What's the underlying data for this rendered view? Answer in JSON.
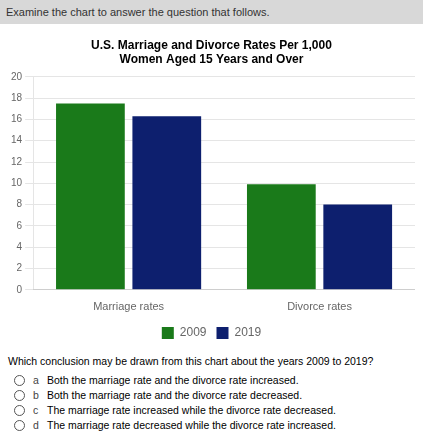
{
  "chart_data": {
    "type": "bar",
    "title": [
      "U.S. Marriage and Divorce Rates Per 1,000",
      "Women Aged 15 Years and Over"
    ],
    "categories": [
      "Marriage rates",
      "Divorce rates"
    ],
    "series": [
      {
        "name": "2009",
        "color": "#1a7a1a",
        "values": [
          17.5,
          9.9
        ]
      },
      {
        "name": "2019",
        "color": "#0d1f6e",
        "values": [
          16.3,
          8.0
        ]
      }
    ],
    "ylim": [
      0,
      20
    ],
    "yticks": [
      0,
      2,
      4,
      6,
      8,
      10,
      12,
      14,
      16,
      18,
      20
    ],
    "grid": true,
    "legend": "bottom",
    "annotations": [
      "Examine the chart to answer the question that follows.",
      "Which conclusion may be drawn from this chart about the years 2009 to 2019?",
      "a",
      "Both the marriage rate and the divorce rate increased.",
      "b",
      "Both the marriage rate and the divorce rate decreased.",
      "c",
      "The marriage rate increased while the divorce rate decreased.",
      "d",
      "The marriage rate decreased while the divorce rate increased."
    ]
  }
}
